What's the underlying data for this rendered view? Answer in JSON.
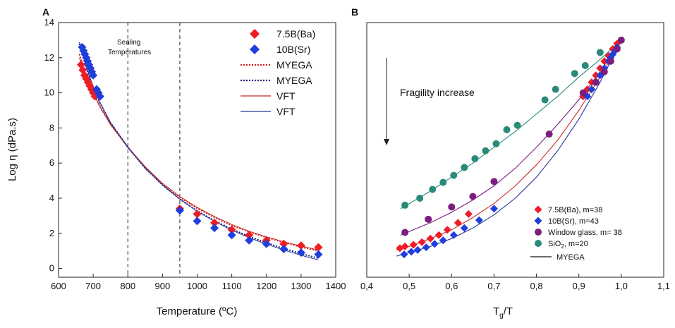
{
  "chart_data": [
    {
      "panel": "A",
      "type": "scatter",
      "xlabel": "Temperature (ºC)",
      "ylabel": "Log η (dPa.s)",
      "xlim": [
        600,
        1400
      ],
      "ylim": [
        -0.5,
        14
      ],
      "xticks": [
        600,
        700,
        800,
        900,
        1000,
        1100,
        1200,
        1300,
        1400
      ],
      "yticks": [
        0,
        2,
        4,
        6,
        8,
        10,
        12,
        14
      ],
      "grid": false,
      "legend_position": "top-right",
      "vlines": [
        800,
        950
      ],
      "annotation": [
        "Sealing",
        "Temperatures"
      ],
      "series": [
        {
          "name": "7.5B(Ba)",
          "kind": "points",
          "marker": "diamond",
          "color": "#ee1c25",
          "x": [
            665,
            670,
            675,
            680,
            685,
            690,
            695,
            700,
            705,
            950,
            1000,
            1050,
            1100,
            1150,
            1200,
            1250,
            1300,
            1350
          ],
          "y": [
            11.6,
            11.3,
            11.0,
            10.8,
            10.6,
            10.4,
            10.2,
            10.0,
            9.8,
            3.4,
            3.1,
            2.6,
            2.2,
            1.9,
            1.6,
            1.4,
            1.3,
            1.2
          ]
        },
        {
          "name": "10B(Sr)",
          "kind": "points",
          "marker": "diamond",
          "color": "#1f3fdc",
          "x": [
            668,
            672,
            676,
            680,
            684,
            688,
            692,
            696,
            700,
            710,
            715,
            720,
            950,
            1000,
            1050,
            1100,
            1150,
            1200,
            1250,
            1300,
            1350
          ],
          "y": [
            12.6,
            12.4,
            12.2,
            12.0,
            11.8,
            11.6,
            11.4,
            11.2,
            11.0,
            10.2,
            10.0,
            9.8,
            3.3,
            2.7,
            2.3,
            1.9,
            1.6,
            1.4,
            1.1,
            0.9,
            0.8
          ]
        },
        {
          "name": "MYEGA",
          "kind": "line",
          "style": "dotted",
          "color": "#d42020",
          "x": [
            660,
            680,
            700,
            720,
            750,
            800,
            850,
            900,
            950,
            1000,
            1050,
            1100,
            1150,
            1200,
            1250,
            1300,
            1350
          ],
          "y": [
            12.2,
            11.0,
            10.0,
            9.2,
            8.2,
            6.9,
            5.75,
            4.8,
            4.05,
            3.42,
            2.9,
            2.45,
            2.08,
            1.76,
            1.48,
            1.22,
            1.0
          ]
        },
        {
          "name": "MYEGA",
          "kind": "line",
          "style": "dotted",
          "color": "#1a237e",
          "x": [
            660,
            680,
            700,
            720,
            750,
            800,
            850,
            900,
            950,
            1000,
            1050,
            1100,
            1150,
            1200,
            1250,
            1300,
            1350
          ],
          "y": [
            12.8,
            11.4,
            10.3,
            9.4,
            8.3,
            6.9,
            5.7,
            4.75,
            3.95,
            3.28,
            2.72,
            2.24,
            1.82,
            1.46,
            1.13,
            0.84,
            0.58
          ]
        },
        {
          "name": "VFT",
          "kind": "line",
          "style": "solid",
          "color": "#c62828",
          "x": [
            660,
            680,
            700,
            720,
            750,
            800,
            850,
            900,
            950,
            1000,
            1050,
            1100,
            1150,
            1200,
            1250,
            1300,
            1350
          ],
          "y": [
            12.0,
            10.9,
            10.0,
            9.2,
            8.2,
            6.9,
            5.8,
            4.85,
            4.1,
            3.48,
            2.95,
            2.5,
            2.12,
            1.8,
            1.52,
            1.27,
            1.05
          ]
        },
        {
          "name": "VFT",
          "kind": "line",
          "style": "solid",
          "color": "#283593",
          "x": [
            660,
            680,
            700,
            720,
            750,
            800,
            850,
            900,
            950,
            1000,
            1050,
            1100,
            1150,
            1200,
            1250,
            1300,
            1350
          ],
          "y": [
            12.9,
            11.5,
            10.35,
            9.45,
            8.3,
            6.9,
            5.72,
            4.75,
            3.95,
            3.25,
            2.68,
            2.18,
            1.75,
            1.38,
            1.05,
            0.75,
            0.48
          ]
        }
      ]
    },
    {
      "panel": "B",
      "type": "scatter",
      "xlabel_main": "T",
      "xlabel_sub": "g",
      "xlabel_tail": "/T",
      "xlim": [
        0.4,
        1.1
      ],
      "ylim": [
        -0.5,
        14
      ],
      "xticks": [
        "0,4",
        "0,5",
        "0,6",
        "0,7",
        "0,8",
        "0,9",
        "1,0",
        "1,1"
      ],
      "xtick_values": [
        0.4,
        0.5,
        0.6,
        0.7,
        0.8,
        0.9,
        1.0,
        1.1
      ],
      "grid": false,
      "legend_position": "bottom-right",
      "annotation": "Fragility increase",
      "series": [
        {
          "name": "7.5B(Ba), m=38",
          "marker": "diamond",
          "color": "#ee1c25",
          "x": [
            0.478,
            0.49,
            0.51,
            0.53,
            0.55,
            0.57,
            0.59,
            0.615,
            0.64,
            0.91,
            0.92,
            0.93,
            0.94,
            0.95,
            0.96,
            0.97,
            0.98,
            0.99
          ],
          "y": [
            1.15,
            1.25,
            1.35,
            1.5,
            1.7,
            1.9,
            2.2,
            2.6,
            3.1,
            9.8,
            10.2,
            10.6,
            11.0,
            11.4,
            11.8,
            12.1,
            12.5,
            12.8
          ]
        },
        {
          "name": "10B(Sr), m=43",
          "marker": "diamond",
          "color": "#1f3fdc",
          "x": [
            0.488,
            0.505,
            0.52,
            0.54,
            0.56,
            0.58,
            0.605,
            0.63,
            0.665,
            0.7,
            0.92,
            0.93,
            0.94,
            0.95,
            0.96,
            0.97,
            0.975,
            0.98,
            0.985,
            0.99
          ],
          "y": [
            0.8,
            0.95,
            1.05,
            1.2,
            1.4,
            1.6,
            1.9,
            2.3,
            2.75,
            3.4,
            9.8,
            10.2,
            10.6,
            11.0,
            11.4,
            11.8,
            12.0,
            12.2,
            12.4,
            12.6
          ]
        },
        {
          "name": "Window glass, m= 38",
          "marker": "circle",
          "color": "#7b1e7e",
          "x": [
            0.49,
            0.545,
            0.6,
            0.65,
            0.7,
            0.83,
            0.91,
            0.94,
            0.96,
            0.975,
            0.99,
            1.0
          ],
          "y": [
            2.05,
            2.8,
            3.5,
            4.1,
            4.95,
            7.65,
            10.0,
            10.6,
            11.2,
            11.8,
            12.5,
            13.0
          ]
        },
        {
          "name": "SiO₂, m=20",
          "sub_name": "SiO",
          "subscript": "2",
          "name_tail": ", m=20",
          "marker": "circle",
          "color": "#2a8a7a",
          "x": [
            0.49,
            0.525,
            0.555,
            0.58,
            0.605,
            0.63,
            0.655,
            0.68,
            0.705,
            0.73,
            0.755,
            0.82,
            0.845,
            0.89,
            0.915,
            0.95
          ],
          "y": [
            3.6,
            4.0,
            4.5,
            4.9,
            5.3,
            5.75,
            6.25,
            6.7,
            7.1,
            7.9,
            8.15,
            9.6,
            10.2,
            11.1,
            11.55,
            12.3
          ]
        },
        {
          "name": "MYEGA",
          "kind": "line",
          "color": "#111111"
        }
      ],
      "fits": [
        {
          "color": "#2a8a7a",
          "x": [
            0.48,
            0.55,
            0.6,
            0.65,
            0.7,
            0.75,
            0.8,
            0.85,
            0.9,
            0.95,
            1.0
          ],
          "y": [
            3.4,
            4.4,
            5.2,
            6.0,
            6.9,
            7.8,
            8.8,
            9.8,
            10.9,
            11.9,
            13.0
          ]
        },
        {
          "color": "#7b1e7e",
          "x": [
            0.48,
            0.55,
            0.6,
            0.65,
            0.7,
            0.75,
            0.8,
            0.85,
            0.9,
            0.95,
            1.0
          ],
          "y": [
            1.9,
            2.6,
            3.2,
            3.9,
            4.7,
            5.7,
            6.9,
            8.2,
            9.6,
            11.2,
            13.0
          ]
        },
        {
          "color": "#c62828",
          "x": [
            0.47,
            0.5,
            0.55,
            0.6,
            0.65,
            0.7,
            0.75,
            0.8,
            0.85,
            0.9,
            0.95,
            1.0
          ],
          "y": [
            1.05,
            1.25,
            1.7,
            2.2,
            2.9,
            3.7,
            4.7,
            5.9,
            7.3,
            9.0,
            10.9,
            13.0
          ]
        },
        {
          "color": "#283593",
          "x": [
            0.47,
            0.5,
            0.55,
            0.6,
            0.65,
            0.7,
            0.75,
            0.8,
            0.85,
            0.9,
            0.95,
            1.0
          ],
          "y": [
            0.7,
            0.9,
            1.25,
            1.7,
            2.3,
            3.05,
            4.0,
            5.2,
            6.7,
            8.5,
            10.6,
            13.0
          ]
        }
      ]
    }
  ]
}
